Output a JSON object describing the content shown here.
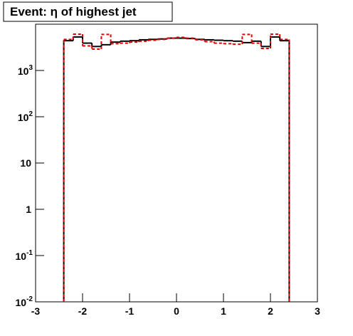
{
  "chart_data": {
    "type": "histogram",
    "title": "Event: η of highest jet",
    "bins": [
      -2.4,
      -2.2,
      -2.0,
      -1.8,
      -1.6,
      -1.4,
      -1.2,
      -1.0,
      -0.8,
      -0.6,
      -0.4,
      -0.2,
      0,
      0.2,
      0.4,
      0.6,
      0.8,
      1.0,
      1.2,
      1.4,
      1.6,
      1.8,
      2.0,
      2.2,
      2.4
    ],
    "series": [
      {
        "color": "#000000",
        "dashed": false,
        "values": [
          4400,
          5300,
          3900,
          3300,
          3600,
          4100,
          4300,
          4400,
          4600,
          4700,
          4800,
          5000,
          5000,
          4900,
          4700,
          4600,
          4500,
          4400,
          4300,
          4000,
          4300,
          3300,
          5300,
          4400
        ]
      },
      {
        "color": "#e00000",
        "dashed": true,
        "values": [
          4700,
          6100,
          3400,
          2900,
          6000,
          3800,
          3900,
          4100,
          4300,
          4500,
          4700,
          5000,
          5200,
          5000,
          4600,
          4200,
          3900,
          3800,
          3700,
          6000,
          3900,
          3000,
          6100,
          4700
        ]
      }
    ],
    "xlim": [
      -3,
      3
    ],
    "xticks": [
      -3,
      -2,
      -1,
      0,
      1,
      2,
      3
    ],
    "ylim": [
      0.01,
      10000
    ],
    "log_y": true,
    "yticks": [
      {
        "value": 0.01,
        "label": "10",
        "exponent": "-2"
      },
      {
        "value": 0.1,
        "label": "10",
        "exponent": "-1"
      },
      1,
      10,
      {
        "value": 100,
        "label": "10",
        "exponent": "2"
      },
      {
        "value": 1000,
        "label": "10",
        "exponent": "3"
      }
    ]
  }
}
